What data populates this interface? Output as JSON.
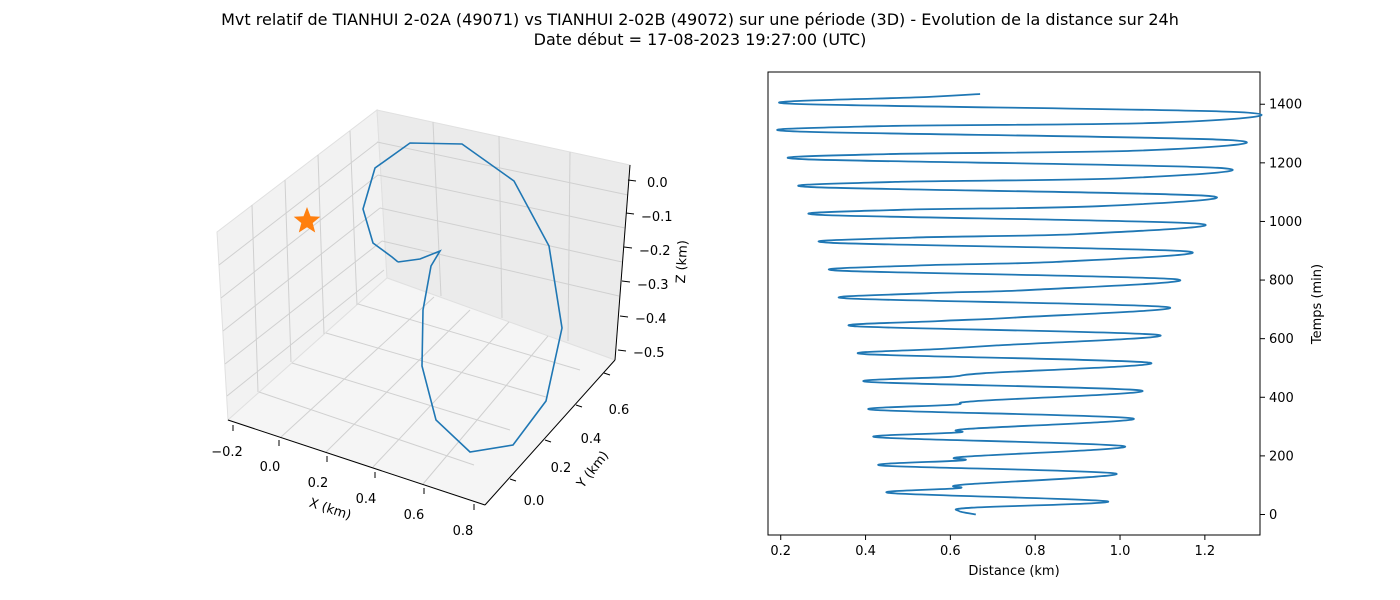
{
  "title_line1": "Mvt relatif de TIANHUI 2-02A (49071) vs TIANHUI 2-02B (49072) sur une période (3D) - Evolution de la distance sur 24h",
  "title_line2": "Date début = 17-08-2023 19:27:00 (UTC)",
  "series_color": "#1f77b4",
  "marker_color": "#ff7f0e",
  "chart_data": [
    {
      "type": "line3d",
      "xlabel": "X (km)",
      "ylabel": "Y (km)",
      "zlabel": "Z (km)",
      "x_ticks": [
        "−0.2",
        "0.0",
        "0.2",
        "0.4",
        "0.6",
        "0.8"
      ],
      "y_ticks": [
        "0.0",
        "0.2",
        "0.4",
        "0.6"
      ],
      "z_ticks": [
        "0.0",
        "−0.1",
        "−0.2",
        "−0.3",
        "−0.4",
        "−0.5"
      ],
      "grid": true,
      "marker": "star"
    },
    {
      "type": "line",
      "xlabel": "Distance (km)",
      "ylabel": "Temps (min)",
      "x_ticks": [
        "0.2",
        "0.4",
        "0.6",
        "0.8",
        "1.0",
        "1.2"
      ],
      "y_ticks": [
        "0",
        "200",
        "400",
        "600",
        "800",
        "1000",
        "1200",
        "1400"
      ],
      "xlim": [
        0.17,
        1.33
      ],
      "ylim": [
        -70,
        1510
      ],
      "grid": false,
      "series": [
        {
          "x": [
            0.66,
            0.62,
            0.65,
            0.97,
            0.46,
            0.62,
            0.63,
            0.99,
            0.44,
            0.63,
            0.63,
            1.01,
            0.43,
            0.62,
            0.64,
            1.03,
            0.42,
            0.61,
            0.66,
            1.05,
            0.41,
            0.6,
            0.68,
            1.07,
            0.4,
            0.58,
            0.71,
            1.09,
            0.38,
            0.57,
            0.75,
            1.11,
            0.36,
            0.55,
            0.8,
            1.13,
            0.34,
            0.53,
            0.85,
            1.155,
            0.32,
            0.51,
            0.9,
            1.18,
            0.3,
            0.49,
            0.95,
            1.2,
            0.28,
            0.47,
            1.0,
            1.23,
            0.26,
            0.45,
            1.05,
            1.255,
            0.24,
            0.43,
            1.1,
            1.28,
            0.22,
            0.55,
            0.67
          ],
          "y": [
            0,
            12,
            23,
            45,
            73,
            90,
            102,
            140,
            167,
            185,
            197,
            233,
            263,
            280,
            292,
            328,
            357,
            375,
            387,
            423,
            452,
            470,
            482,
            518,
            547,
            565,
            577,
            613,
            642,
            660,
            672,
            708,
            737,
            755,
            767,
            803,
            832,
            850,
            862,
            898,
            927,
            945,
            957,
            993,
            1022,
            1040,
            1052,
            1088,
            1117,
            1135,
            1147,
            1183,
            1212,
            1230,
            1242,
            1278,
            1307,
            1325,
            1337,
            1373,
            1402,
            1425,
            1435
          ]
        }
      ]
    }
  ]
}
